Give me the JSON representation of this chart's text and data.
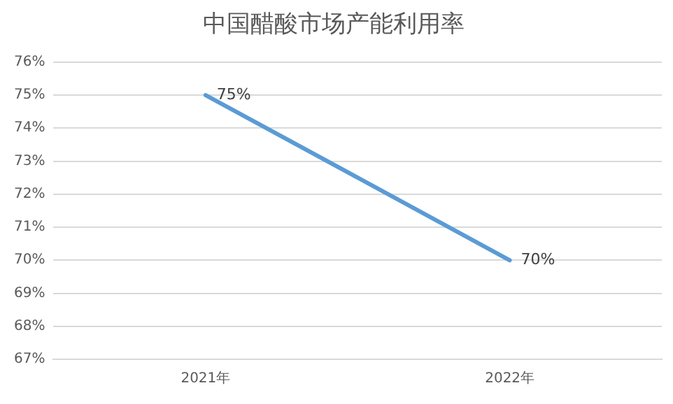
{
  "chart_data": {
    "type": "line",
    "title": "中国醋酸市场产能利用率",
    "categories": [
      "2021年",
      "2022年"
    ],
    "series": [
      {
        "color": "#5b9bd5",
        "values": [
          75,
          70
        ],
        "value_labels": [
          "75%",
          "70%"
        ]
      }
    ],
    "ylim": [
      67,
      76
    ],
    "yticks": [
      {
        "value": 67,
        "label": "67%"
      },
      {
        "value": 68,
        "label": "68%"
      },
      {
        "value": 69,
        "label": "69%"
      },
      {
        "value": 70,
        "label": "70%"
      },
      {
        "value": 71,
        "label": "71%"
      },
      {
        "value": 72,
        "label": "72%"
      },
      {
        "value": 73,
        "label": "73%"
      },
      {
        "value": 74,
        "label": "74%"
      },
      {
        "value": 75,
        "label": "75%"
      },
      {
        "value": 76,
        "label": "76%"
      }
    ],
    "grid": "y",
    "legend": false,
    "marker": "none",
    "line_style": "solid"
  }
}
